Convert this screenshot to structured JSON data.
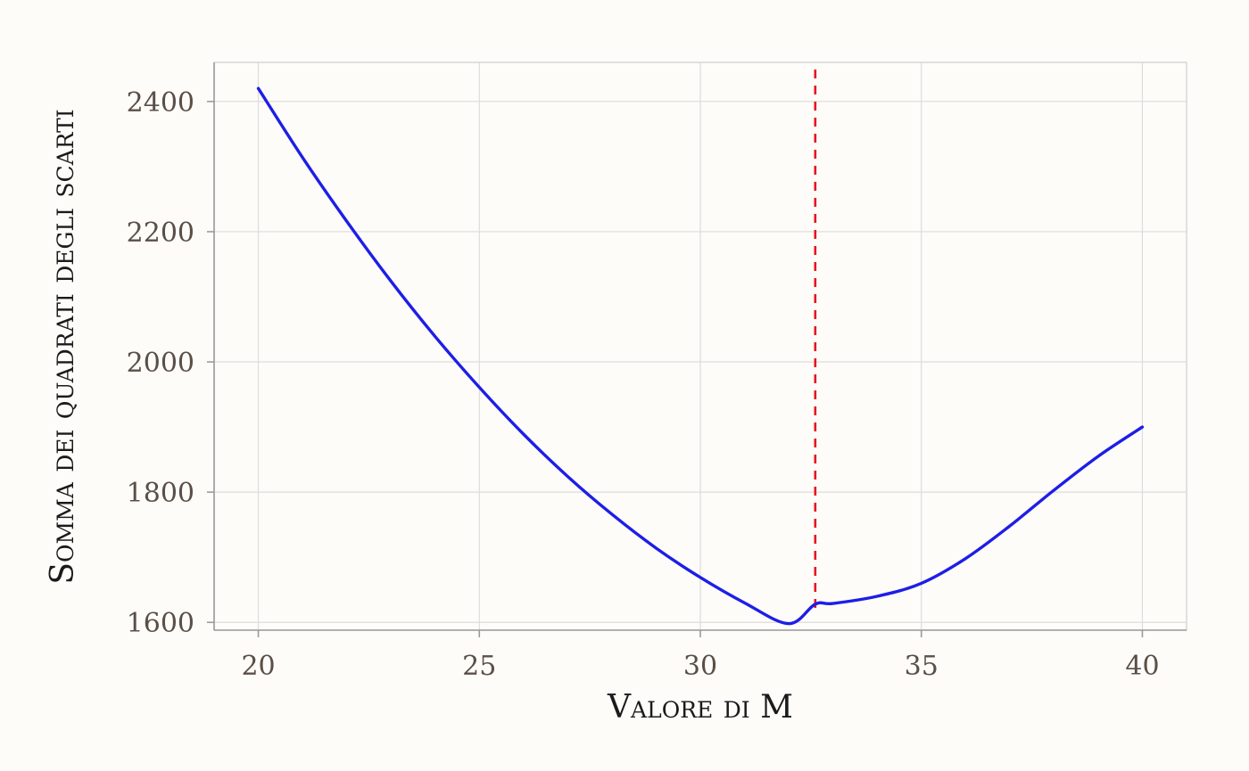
{
  "chart_data": {
    "type": "line",
    "xlabel": "Valore di M",
    "ylabel": "Somma dei quadrati degli scarti",
    "xlim": [
      19,
      41
    ],
    "ylim": [
      1588,
      2460
    ],
    "x_ticks": [
      20,
      25,
      30,
      35,
      40
    ],
    "x_tick_labels": [
      "20",
      "25",
      "30",
      "35",
      "40"
    ],
    "y_ticks": [
      1600,
      1800,
      2000,
      2200,
      2400
    ],
    "y_tick_labels": [
      "1600",
      "1800",
      "2000",
      "2200",
      "2400"
    ],
    "grid": true,
    "series": [
      {
        "color": "#1e1ee6",
        "x": [
          20,
          21,
          22,
          23,
          24,
          25,
          26,
          27,
          28,
          29,
          30,
          31,
          32,
          32.6,
          33,
          34,
          35,
          36,
          37,
          38,
          39,
          40
        ],
        "y": [
          2420,
          2314,
          2216,
          2124,
          2039,
          1961,
          1889,
          1824,
          1766,
          1714,
          1669,
          1630,
          1598,
          1628,
          1629,
          1640,
          1660,
          1698,
          1748,
          1803,
          1855,
          1900
        ]
      }
    ],
    "vline": {
      "x": 32.6,
      "color": "#e8141c",
      "style": "dashed"
    }
  }
}
